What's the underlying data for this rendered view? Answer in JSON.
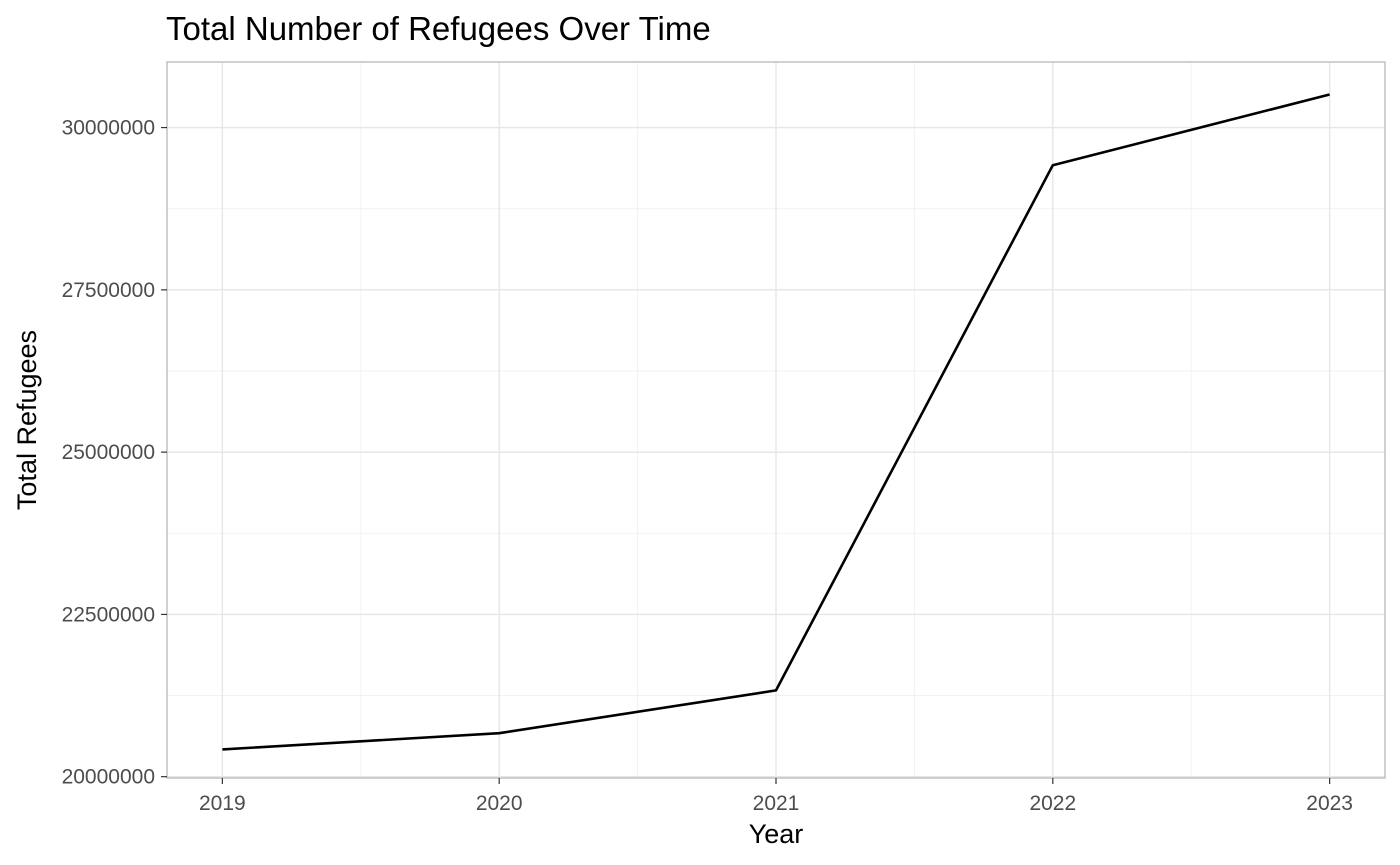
{
  "chart_data": {
    "type": "line",
    "title": "Total Number of Refugees Over Time",
    "xlabel": "Year",
    "ylabel": "Total Refugees",
    "x": [
      2019,
      2020,
      2021,
      2022,
      2023
    ],
    "series": [
      {
        "values": [
          20420000,
          20670000,
          21330000,
          29420000,
          30510000
        ]
      }
    ],
    "xlim": [
      2018.8,
      2023.2
    ],
    "ylim": [
      19980000,
      31010000
    ],
    "x_ticks": [
      "2019",
      "2020",
      "2021",
      "2022",
      "2023"
    ],
    "y_ticks": [
      "20000000",
      "22500000",
      "25000000",
      "27500000",
      "30000000"
    ],
    "grid": true,
    "legend": "none",
    "colors": {
      "line": "#000000",
      "grid": "#e6e6e6",
      "background": "#ffffff"
    }
  }
}
